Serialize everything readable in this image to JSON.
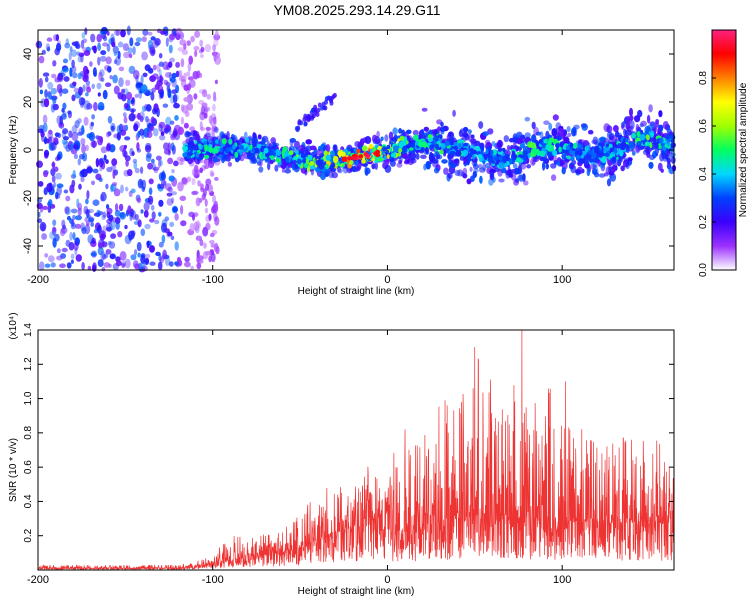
{
  "title": "YM08.2025.293.14.29.G11",
  "colors": {
    "snr_line": "#ee3333",
    "axis": "#000000",
    "background": "#ffffff"
  },
  "chart_data": [
    {
      "type": "heatmap",
      "name": "spectrogram",
      "xlabel": "Height of straight line (km)",
      "ylabel": "Frequency (Hz)",
      "xlim": [
        -200,
        164
      ],
      "ylim": [
        -50,
        50
      ],
      "xticks": [
        -200,
        -100,
        0,
        100
      ],
      "yticks": [
        -40,
        -20,
        0,
        20,
        40
      ],
      "colorbar": {
        "label": "Normalized spectral amplitude",
        "range": [
          0,
          1
        ],
        "ticks": [
          "0.0",
          "0.2",
          "0.4",
          "0.6",
          "0.8"
        ],
        "colormap": [
          "#ffffff",
          "#9b30ff",
          "#3a00ff",
          "#0040ff",
          "#00d8ff",
          "#00ff60",
          "#a0ff00",
          "#ffff00",
          "#ff8000",
          "#ff0000",
          "#ff2080"
        ]
      },
      "ridge": {
        "x_km": [
          -116,
          -100,
          -80,
          -60,
          -40,
          -20,
          0,
          10,
          25,
          40,
          55,
          70,
          85,
          100,
          115,
          130,
          145,
          164
        ],
        "freq_hz": [
          0,
          0.5,
          1.0,
          -2.0,
          -5.5,
          -3.0,
          -0.8,
          1.8,
          3.2,
          1.5,
          -3.0,
          -3.8,
          1.0,
          1.3,
          -2.0,
          -1.0,
          5.0,
          1.0
        ],
        "peak_amplitude": [
          0.5,
          0.5,
          0.55,
          0.55,
          0.65,
          0.95,
          0.85,
          0.6,
          0.55,
          0.5,
          0.45,
          0.45,
          0.6,
          0.5,
          0.45,
          0.45,
          0.6,
          0.45
        ]
      },
      "noise_region_x_km": [
        -200,
        -105
      ]
    },
    {
      "type": "line",
      "name": "snr",
      "xlabel": "Height of straight line (km)",
      "ylabel": "SNR (10 * v/v)",
      "y_scale_note": "(x10⁴)",
      "xlim": [
        -200,
        164
      ],
      "ylim": [
        0,
        1.4
      ],
      "xticks": [
        -200,
        -100,
        0,
        100
      ],
      "yticks": [
        0.2,
        0.4,
        0.6,
        0.8,
        1.0,
        1.2,
        1.4
      ],
      "envelope": {
        "x_km": [
          -200,
          -120,
          -110,
          -100,
          -90,
          -80,
          -60,
          -50,
          -40,
          -30,
          -20,
          -10,
          -5,
          0,
          3,
          10,
          20,
          30,
          40,
          50,
          60,
          70,
          80,
          90,
          100,
          110,
          120,
          130,
          140,
          150,
          164
        ],
        "y_base": [
          0.01,
          0.01,
          0.02,
          0.04,
          0.06,
          0.07,
          0.1,
          0.13,
          0.18,
          0.22,
          0.24,
          0.28,
          0.3,
          0.33,
          0.25,
          0.22,
          0.24,
          0.28,
          0.3,
          0.32,
          0.32,
          0.31,
          0.3,
          0.3,
          0.29,
          0.28,
          0.28,
          0.27,
          0.27,
          0.27,
          0.27
        ],
        "y_peak": [
          0.03,
          0.03,
          0.05,
          0.08,
          0.22,
          0.18,
          0.24,
          0.33,
          0.45,
          0.52,
          0.48,
          0.62,
          0.55,
          0.6,
          0.72,
          0.68,
          0.82,
          1.0,
          1.05,
          1.1,
          1.15,
          1.1,
          1.05,
          1.15,
          0.9,
          0.85,
          0.82,
          0.8,
          0.8,
          0.78,
          0.7
        ]
      },
      "notable_peaks": [
        {
          "x_km": 77,
          "y": 1.4
        },
        {
          "x_km": 50,
          "y": 1.3
        },
        {
          "x_km": 52,
          "y": 1.23
        },
        {
          "x_km": 102,
          "y": 1.1
        },
        {
          "x_km": 10,
          "y": 0.82
        }
      ]
    }
  ]
}
